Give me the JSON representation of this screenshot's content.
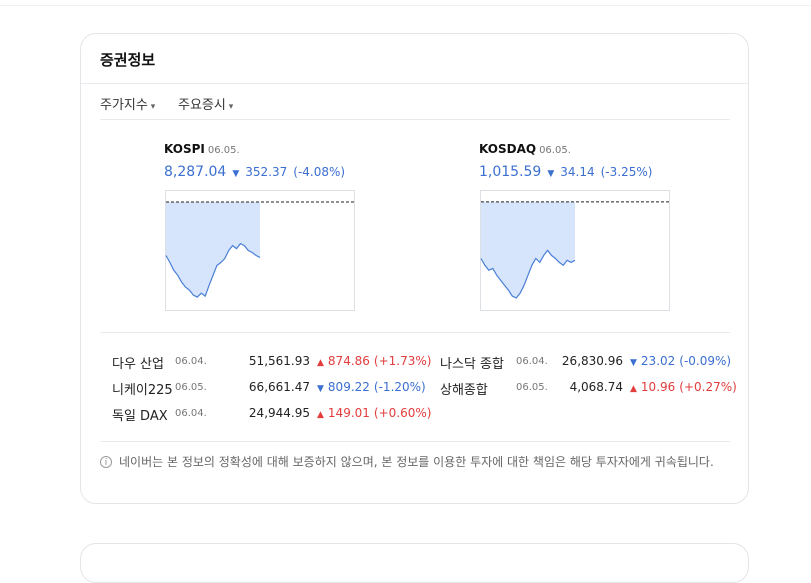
{
  "header": {
    "title": "증권정보"
  },
  "tabs": [
    "주가지수",
    "주요증시"
  ],
  "indices": [
    {
      "name": "KOSPI",
      "date": "06.05.",
      "value": "8,287.04",
      "change": "352.37",
      "percent": "(-4.08%)",
      "direction": "down",
      "sparkline": {
        "ylim": [
          7953,
          8709
        ],
        "reference": 8639.41,
        "values": [
          8299,
          8255,
          8205,
          8173,
          8129,
          8098,
          8079,
          8047,
          8035,
          8060,
          8041,
          8110,
          8173,
          8236,
          8255,
          8280,
          8331,
          8362,
          8343,
          8375,
          8362,
          8331,
          8318,
          8299,
          8287
        ]
      }
    },
    {
      "name": "KOSDAQ",
      "date": "06.05.",
      "value": "1,015.59",
      "change": "34.14",
      "percent": "(-3.25%)",
      "direction": "down",
      "sparkline": {
        "ylim": [
          986.6,
          1056.1
        ],
        "reference": 1049.73,
        "values": [
          1016.7,
          1012.7,
          1009.8,
          1010.9,
          1006.9,
          1004.0,
          1001.1,
          998.2,
          994.7,
          993.6,
          996.5,
          1001.1,
          1006.9,
          1012.7,
          1016.7,
          1014.4,
          1018.5,
          1021.4,
          1018.5,
          1016.7,
          1014.4,
          1012.7,
          1015.6,
          1014.4,
          1015.6
        ]
      }
    }
  ],
  "markets": [
    {
      "name": "다우 산업",
      "date": "06.04.",
      "value": "51,561.93",
      "change": "874.86",
      "percent": "(+1.73%)",
      "direction": "up"
    },
    {
      "name": "나스닥 종합",
      "date": "06.04.",
      "value": "26,830.96",
      "change": "23.02",
      "percent": "(-0.09%)",
      "direction": "down"
    },
    {
      "name": "니케이225",
      "date": "06.05.",
      "value": "66,661.47",
      "change": "809.22",
      "percent": "(-1.20%)",
      "direction": "down"
    },
    {
      "name": "상해종합",
      "date": "06.05.",
      "value": "4,068.74",
      "change": "10.96",
      "percent": "(+0.27%)",
      "direction": "up"
    },
    {
      "name": "독일 DAX",
      "date": "06.04.",
      "value": "24,944.95",
      "change": "149.01",
      "percent": "(+0.60%)",
      "direction": "up"
    }
  ],
  "notice": "네이버는 본 정보의 정확성에 대해 보증하지 않으며, 본 정보를 이용한 투자에 대한 책임은 해당 투자자에게 귀속됩니다."
}
